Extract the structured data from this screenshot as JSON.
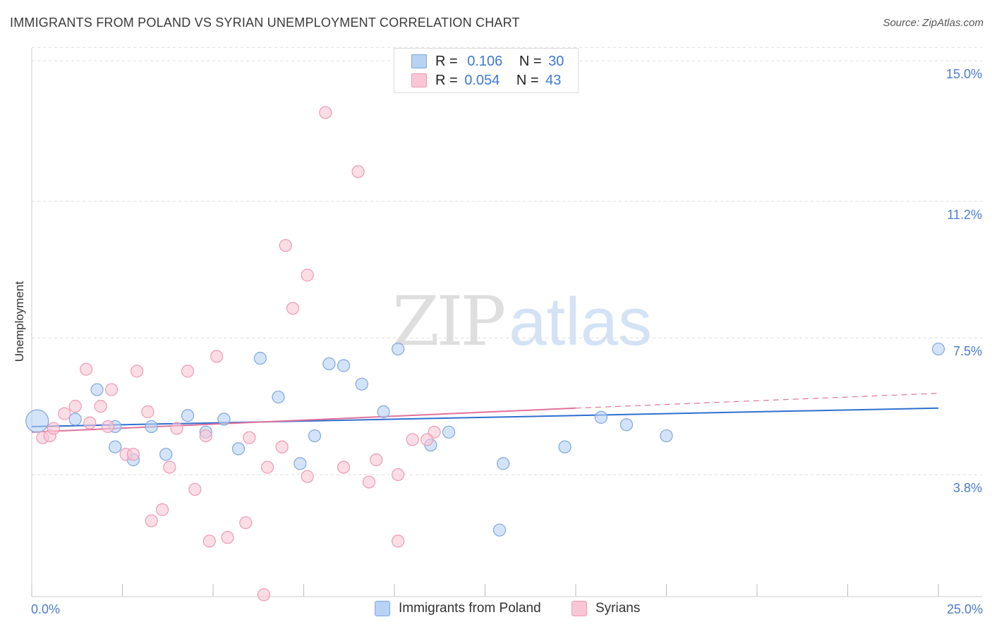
{
  "header": {
    "title": "IMMIGRANTS FROM POLAND VS SYRIAN UNEMPLOYMENT CORRELATION CHART",
    "source": "Source: ZipAtlas.com"
  },
  "watermark": {
    "zip": "ZIP",
    "atlas": "atlas"
  },
  "legend_top": {
    "rows": [
      {
        "r_label": "R =",
        "r_value": "0.106",
        "n_label": "N =",
        "n_value": "30"
      },
      {
        "r_label": "R =",
        "r_value": "0.054",
        "n_label": "N =",
        "n_value": "43"
      }
    ]
  },
  "legend_bottom": {
    "items": [
      "Immigrants from Poland",
      "Syrians"
    ]
  },
  "colors": {
    "poland_fill": "#b8d2f4",
    "poland_stroke": "#7ea6de",
    "poland_line": "#2f6fd0",
    "syrian_fill": "#f9c6d6",
    "syrian_stroke": "#ec9ab5",
    "syrian_line": "#e0729a",
    "grid": "#dddddd",
    "tick_label": "#4a7bd0"
  },
  "chart_data": {
    "type": "scatter",
    "title": "IMMIGRANTS FROM POLAND VS SYRIAN UNEMPLOYMENT CORRELATION CHART",
    "xlabel": "",
    "ylabel": "Unemployment",
    "xlim": [
      0,
      25
    ],
    "ylim": [
      0.5,
      15.5
    ],
    "x_tick_labels": [
      "0.0%",
      "25.0%"
    ],
    "y_ticks": [
      3.8,
      7.5,
      11.2,
      15.0
    ],
    "y_tick_labels": [
      "3.8%",
      "7.5%",
      "11.2%",
      "15.0%"
    ],
    "grid": true,
    "legend_position": "top-center",
    "series": [
      {
        "name": "Immigrants from Poland",
        "r": 0.106,
        "n": 30,
        "trend": {
          "x": [
            0,
            25
          ],
          "y": [
            5.1,
            5.6
          ]
        },
        "points": [
          {
            "x": 0.15,
            "y": 5.25,
            "big": true
          },
          {
            "x": 1.2,
            "y": 5.3
          },
          {
            "x": 1.8,
            "y": 6.1
          },
          {
            "x": 2.3,
            "y": 5.1
          },
          {
            "x": 2.3,
            "y": 4.55
          },
          {
            "x": 2.8,
            "y": 4.2
          },
          {
            "x": 3.3,
            "y": 5.1
          },
          {
            "x": 3.7,
            "y": 4.35
          },
          {
            "x": 4.3,
            "y": 5.4
          },
          {
            "x": 4.8,
            "y": 4.95
          },
          {
            "x": 5.3,
            "y": 5.3
          },
          {
            "x": 5.7,
            "y": 4.5
          },
          {
            "x": 6.3,
            "y": 6.95
          },
          {
            "x": 6.8,
            "y": 5.9
          },
          {
            "x": 7.4,
            "y": 4.1
          },
          {
            "x": 7.8,
            "y": 4.85
          },
          {
            "x": 8.2,
            "y": 6.8
          },
          {
            "x": 8.6,
            "y": 6.75
          },
          {
            "x": 9.1,
            "y": 6.25
          },
          {
            "x": 9.7,
            "y": 5.5
          },
          {
            "x": 10.1,
            "y": 7.2
          },
          {
            "x": 11.0,
            "y": 4.6
          },
          {
            "x": 11.5,
            "y": 4.95
          },
          {
            "x": 12.9,
            "y": 2.3
          },
          {
            "x": 13.0,
            "y": 4.1
          },
          {
            "x": 14.7,
            "y": 4.55
          },
          {
            "x": 15.7,
            "y": 5.35
          },
          {
            "x": 16.4,
            "y": 5.15
          },
          {
            "x": 17.5,
            "y": 4.85
          },
          {
            "x": 25.0,
            "y": 7.2
          }
        ]
      },
      {
        "name": "Syrians",
        "r": 0.054,
        "n": 43,
        "trend": {
          "x": [
            0,
            15
          ],
          "y": [
            4.95,
            5.6
          ],
          "dashed_to": [
            25,
            6.0
          ]
        },
        "points": [
          {
            "x": 0.3,
            "y": 4.8
          },
          {
            "x": 0.5,
            "y": 4.85
          },
          {
            "x": 0.6,
            "y": 5.05
          },
          {
            "x": 0.9,
            "y": 5.45
          },
          {
            "x": 1.2,
            "y": 5.65
          },
          {
            "x": 1.5,
            "y": 6.65
          },
          {
            "x": 1.6,
            "y": 5.2
          },
          {
            "x": 1.9,
            "y": 5.65
          },
          {
            "x": 2.1,
            "y": 5.1
          },
          {
            "x": 2.2,
            "y": 6.1
          },
          {
            "x": 2.6,
            "y": 4.35
          },
          {
            "x": 2.8,
            "y": 4.35
          },
          {
            "x": 2.9,
            "y": 6.6
          },
          {
            "x": 3.2,
            "y": 5.5
          },
          {
            "x": 3.3,
            "y": 2.55
          },
          {
            "x": 3.6,
            "y": 2.85
          },
          {
            "x": 3.8,
            "y": 4.0
          },
          {
            "x": 4.0,
            "y": 5.05
          },
          {
            "x": 4.3,
            "y": 6.6
          },
          {
            "x": 4.5,
            "y": 3.4
          },
          {
            "x": 4.8,
            "y": 4.85
          },
          {
            "x": 4.9,
            "y": 2.0
          },
          {
            "x": 5.1,
            "y": 7.0
          },
          {
            "x": 5.4,
            "y": 2.1
          },
          {
            "x": 5.9,
            "y": 2.5
          },
          {
            "x": 6.0,
            "y": 4.8
          },
          {
            "x": 6.5,
            "y": 4.0
          },
          {
            "x": 6.4,
            "y": 0.55
          },
          {
            "x": 6.9,
            "y": 4.55
          },
          {
            "x": 7.0,
            "y": 10.0
          },
          {
            "x": 7.2,
            "y": 8.3
          },
          {
            "x": 7.6,
            "y": 9.2
          },
          {
            "x": 7.6,
            "y": 3.75
          },
          {
            "x": 8.1,
            "y": 13.6
          },
          {
            "x": 8.6,
            "y": 4.0
          },
          {
            "x": 9.0,
            "y": 12.0
          },
          {
            "x": 9.3,
            "y": 3.6
          },
          {
            "x": 9.5,
            "y": 4.2
          },
          {
            "x": 10.1,
            "y": 3.8
          },
          {
            "x": 10.1,
            "y": 2.0
          },
          {
            "x": 10.5,
            "y": 4.75
          },
          {
            "x": 11.1,
            "y": 4.95
          },
          {
            "x": 10.9,
            "y": 4.75
          }
        ]
      }
    ]
  }
}
